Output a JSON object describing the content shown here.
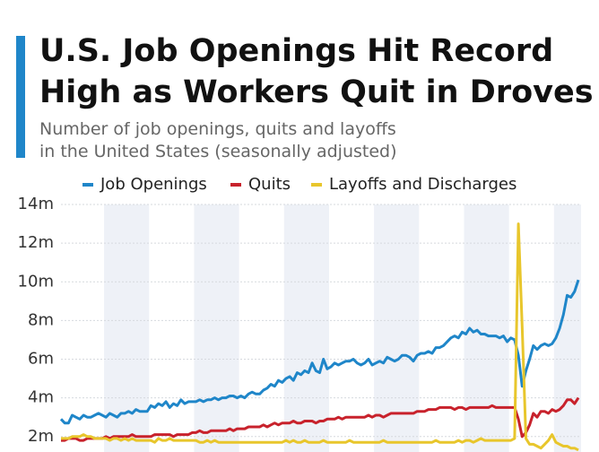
{
  "chart_data": {
    "type": "line",
    "title_lines": [
      "U.S. Job Openings Hit Record",
      "High as Workers Quit in Droves"
    ],
    "subtitle_lines": [
      "Number of job openings, quits and layoffs",
      "in the United States (seasonally adjusted)"
    ],
    "ylim": [
      1.2,
      14
    ],
    "yticks": [
      {
        "value": 2,
        "label": "2m"
      },
      {
        "value": 4,
        "label": "4m"
      },
      {
        "value": 6,
        "label": "6m"
      },
      {
        "value": 8,
        "label": "8m"
      },
      {
        "value": 10,
        "label": "10m"
      },
      {
        "value": 12,
        "label": "12m"
      },
      {
        "value": 14,
        "label": "14m"
      }
    ],
    "grid": true,
    "series": [
      {
        "name": "Job Openings",
        "color": "#1f86c9",
        "values": [
          2.9,
          2.7,
          2.7,
          3.1,
          3.0,
          2.9,
          3.1,
          3.0,
          3.0,
          3.1,
          3.2,
          3.1,
          3.0,
          3.2,
          3.1,
          3.0,
          3.2,
          3.2,
          3.3,
          3.2,
          3.4,
          3.3,
          3.3,
          3.3,
          3.6,
          3.5,
          3.7,
          3.6,
          3.8,
          3.5,
          3.7,
          3.6,
          3.9,
          3.7,
          3.8,
          3.8,
          3.8,
          3.9,
          3.8,
          3.9,
          3.9,
          4.0,
          3.9,
          4.0,
          4.0,
          4.1,
          4.1,
          4.0,
          4.1,
          4.0,
          4.2,
          4.3,
          4.2,
          4.2,
          4.4,
          4.5,
          4.7,
          4.6,
          4.9,
          4.8,
          5.0,
          5.1,
          4.9,
          5.3,
          5.2,
          5.4,
          5.3,
          5.8,
          5.4,
          5.3,
          6.0,
          5.5,
          5.6,
          5.8,
          5.7,
          5.8,
          5.9,
          5.9,
          6.0,
          5.8,
          5.7,
          5.8,
          6.0,
          5.7,
          5.8,
          5.9,
          5.8,
          6.1,
          6.0,
          5.9,
          6.0,
          6.2,
          6.2,
          6.1,
          5.9,
          6.2,
          6.3,
          6.3,
          6.4,
          6.3,
          6.6,
          6.6,
          6.7,
          6.9,
          7.1,
          7.2,
          7.1,
          7.4,
          7.3,
          7.6,
          7.4,
          7.5,
          7.3,
          7.3,
          7.2,
          7.2,
          7.2,
          7.1,
          7.2,
          6.9,
          7.1,
          7.0,
          6.2,
          4.6,
          5.4,
          6.0,
          6.7,
          6.5,
          6.7,
          6.8,
          6.7,
          6.8,
          7.1,
          7.6,
          8.3,
          9.3,
          9.2,
          9.5,
          10.1
        ]
      },
      {
        "name": "Quits",
        "color": "#c8222c",
        "values": [
          1.8,
          1.8,
          1.9,
          1.9,
          1.9,
          1.8,
          1.8,
          1.9,
          1.9,
          1.9,
          1.9,
          1.9,
          2.0,
          1.9,
          2.0,
          2.0,
          2.0,
          2.0,
          2.0,
          2.1,
          2.0,
          2.0,
          2.0,
          2.0,
          2.0,
          2.1,
          2.1,
          2.1,
          2.1,
          2.1,
          2.0,
          2.1,
          2.1,
          2.1,
          2.1,
          2.2,
          2.2,
          2.3,
          2.2,
          2.2,
          2.3,
          2.3,
          2.3,
          2.3,
          2.3,
          2.4,
          2.3,
          2.4,
          2.4,
          2.4,
          2.5,
          2.5,
          2.5,
          2.5,
          2.6,
          2.5,
          2.6,
          2.7,
          2.6,
          2.7,
          2.7,
          2.7,
          2.8,
          2.7,
          2.7,
          2.8,
          2.8,
          2.8,
          2.7,
          2.8,
          2.8,
          2.9,
          2.9,
          2.9,
          3.0,
          2.9,
          3.0,
          3.0,
          3.0,
          3.0,
          3.0,
          3.0,
          3.1,
          3.0,
          3.1,
          3.1,
          3.0,
          3.1,
          3.2,
          3.2,
          3.2,
          3.2,
          3.2,
          3.2,
          3.2,
          3.3,
          3.3,
          3.3,
          3.4,
          3.4,
          3.4,
          3.5,
          3.5,
          3.5,
          3.5,
          3.4,
          3.5,
          3.5,
          3.4,
          3.5,
          3.5,
          3.5,
          3.5,
          3.5,
          3.5,
          3.6,
          3.5,
          3.5,
          3.5,
          3.5,
          3.5,
          3.5,
          2.9,
          2.0,
          2.2,
          2.6,
          3.2,
          3.0,
          3.3,
          3.3,
          3.2,
          3.4,
          3.3,
          3.4,
          3.6,
          3.9,
          3.9,
          3.7,
          4.0
        ]
      },
      {
        "name": "Layoffs and Discharges",
        "color": "#e8c62c",
        "values": [
          1.9,
          1.9,
          1.9,
          2.0,
          2.0,
          2.0,
          2.1,
          2.0,
          2.0,
          1.9,
          1.9,
          1.9,
          1.9,
          1.8,
          1.9,
          1.9,
          1.8,
          1.9,
          1.8,
          1.9,
          1.8,
          1.8,
          1.8,
          1.8,
          1.8,
          1.7,
          1.9,
          1.8,
          1.8,
          1.9,
          1.8,
          1.8,
          1.8,
          1.8,
          1.8,
          1.8,
          1.8,
          1.7,
          1.7,
          1.8,
          1.7,
          1.8,
          1.7,
          1.7,
          1.7,
          1.7,
          1.7,
          1.7,
          1.7,
          1.7,
          1.7,
          1.7,
          1.7,
          1.7,
          1.7,
          1.7,
          1.7,
          1.7,
          1.7,
          1.7,
          1.8,
          1.7,
          1.8,
          1.7,
          1.7,
          1.8,
          1.7,
          1.7,
          1.7,
          1.7,
          1.8,
          1.7,
          1.7,
          1.7,
          1.7,
          1.7,
          1.7,
          1.8,
          1.7,
          1.7,
          1.7,
          1.7,
          1.7,
          1.7,
          1.7,
          1.7,
          1.8,
          1.7,
          1.7,
          1.7,
          1.7,
          1.7,
          1.7,
          1.7,
          1.7,
          1.7,
          1.7,
          1.7,
          1.7,
          1.7,
          1.8,
          1.7,
          1.7,
          1.7,
          1.7,
          1.7,
          1.8,
          1.7,
          1.8,
          1.8,
          1.7,
          1.8,
          1.9,
          1.8,
          1.8,
          1.8,
          1.8,
          1.8,
          1.8,
          1.8,
          1.8,
          1.9,
          13.0,
          7.7,
          1.9,
          1.6,
          1.6,
          1.5,
          1.4,
          1.6,
          1.8,
          2.1,
          1.7,
          1.6,
          1.5,
          1.5,
          1.4,
          1.4,
          1.3
        ]
      }
    ]
  }
}
